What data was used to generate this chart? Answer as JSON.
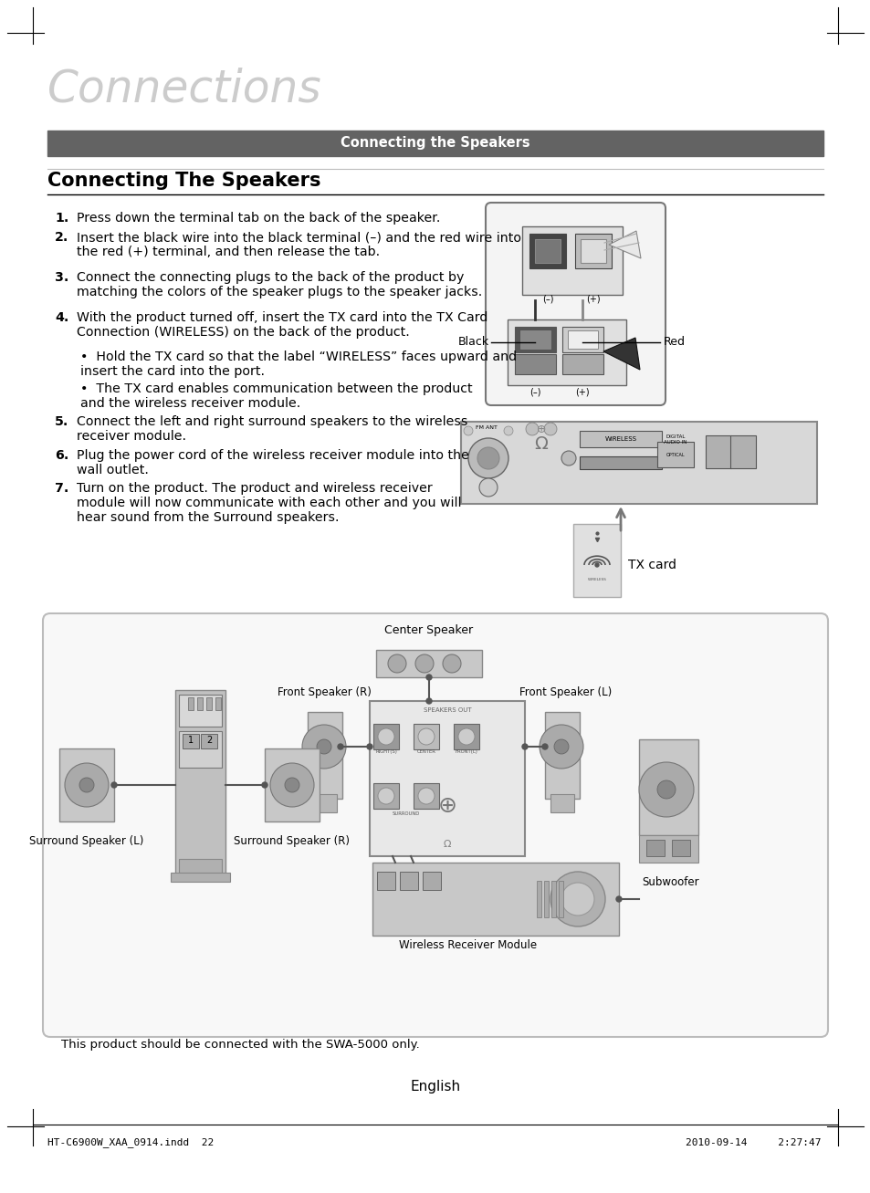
{
  "page_title": "Connections",
  "section_header": "Connecting the Speakers",
  "section_title": "Connecting The Speakers",
  "step1": "Press down the terminal tab on the back of the speaker.",
  "step2": "Insert the black wire into the black terminal (–) and the red wire into\nthe red (+) terminal, and then release the tab.",
  "step3": "Connect the connecting plugs to the back of the product by\nmatching the colors of the speaker plugs to the speaker jacks.",
  "step4": "With the product turned off, insert the TX card into the TX Card\nConnection (WIRELESS) on the back of the product.",
  "bullet1": "Hold the TX card so that the label “WIRELESS” faces upward and\ninsert the card into the port.",
  "bullet2": "The TX card enables communication between the product\nand the wireless receiver module.",
  "step5": "Connect the left and right surround speakers to the wireless\nreceiver module.",
  "step6": "Plug the power cord of the wireless receiver module into the\nwall outlet.",
  "step7": "Turn on the product. The product and wireless receiver\nmodule will now communicate with each other and you will\nhear sound from the Surround speakers.",
  "diagram_caption": "This product should be connected with the SWA-5000 only.",
  "lbl_center": "Center Speaker",
  "lbl_fsr": "Front Speaker (R)",
  "lbl_fsl": "Front Speaker (L)",
  "lbl_ssl": "Surround Speaker (L)",
  "lbl_ssr": "Surround Speaker (R)",
  "lbl_sub": "Subwoofer",
  "lbl_wr": "Wireless Receiver Module",
  "lbl_black": "Black",
  "lbl_red": "Red",
  "lbl_tx": "TX card",
  "footer_left": "HT-C6900W_XAA_0914.indd  22",
  "footer_center": "English",
  "footer_right": "2010-09-14     2:27:47",
  "bg": "#ffffff",
  "hdr_bg": "#636363",
  "hdr_fg": "#ffffff",
  "gray1": "#cccccc",
  "gray2": "#aaaaaa",
  "gray3": "#888888",
  "gray4": "#555555",
  "gray5": "#dddddd",
  "gray6": "#e8e8e8",
  "title_color": "#cccccc"
}
